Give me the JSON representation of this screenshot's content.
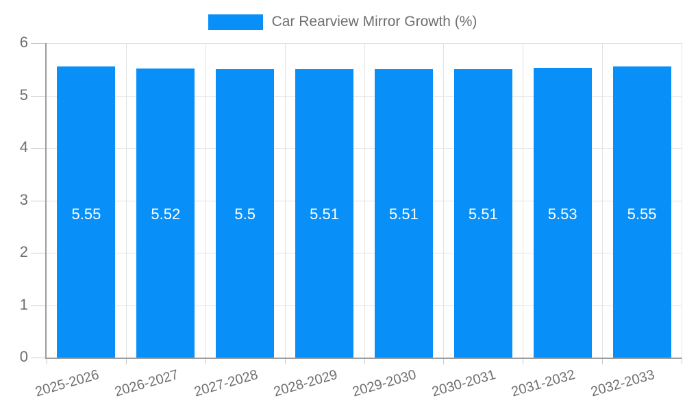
{
  "legend": {
    "label": "Car Rearview Mirror Growth (%)"
  },
  "colors": {
    "bar": "#0890f8",
    "grid": "#e2e2e2",
    "axis": "#9c9c9c",
    "tick": "#c9c9c9",
    "label_text": "#6f6f6f",
    "value_text": "#ffffff",
    "background": "#ffffff"
  },
  "chart_data": {
    "type": "bar",
    "title": "Car Rearview Mirror Growth (%)",
    "categories": [
      "2025-2026",
      "2026-2027",
      "2027-2028",
      "2028-2029",
      "2029-2030",
      "2030-2031",
      "2031-2032",
      "2032-2033"
    ],
    "values": [
      5.55,
      5.52,
      5.5,
      5.51,
      5.51,
      5.51,
      5.53,
      5.55
    ],
    "value_labels": [
      "5.55",
      "5.52",
      "5.5",
      "5.51",
      "5.51",
      "5.51",
      "5.53",
      "5.55"
    ],
    "xlabel": "",
    "ylabel": "",
    "ylim": [
      0,
      6
    ],
    "yticks": [
      0,
      1,
      2,
      3,
      4,
      5,
      6
    ],
    "grid": true,
    "legend_position": "top-center",
    "series_color": "#0890f8",
    "bar_label_color": "#ffffff",
    "x_tick_rotation_deg": -16
  }
}
